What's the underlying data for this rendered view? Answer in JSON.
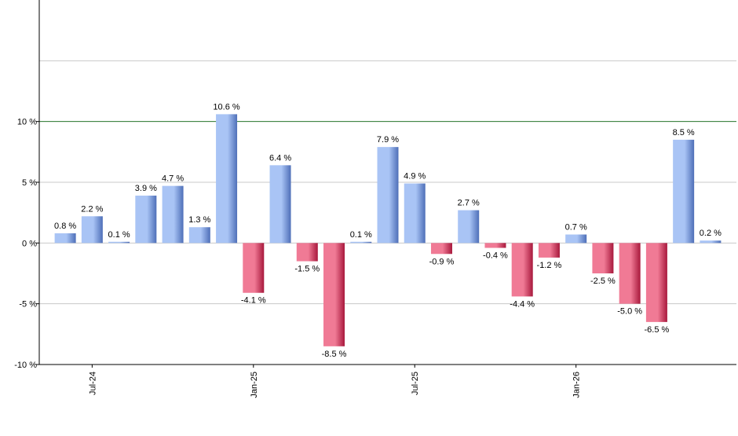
{
  "chart_data": {
    "type": "bar",
    "x": [
      "2024-06",
      "2024-07",
      "2024-08",
      "2024-09",
      "2024-10",
      "2024-11",
      "2024-12",
      "2025-01",
      "2025-02",
      "2025-03",
      "2025-04",
      "2025-05",
      "2025-06",
      "2025-07",
      "2025-08",
      "2025-09",
      "2025-10",
      "2025-11",
      "2025-12",
      "2026-01",
      "2026-02",
      "2026-03",
      "2026-04",
      "2026-05",
      "2026-06"
    ],
    "values": [
      0.8,
      2.2,
      0.1,
      3.9,
      4.7,
      1.3,
      10.6,
      -4.1,
      6.4,
      -1.5,
      -8.5,
      0.1,
      7.9,
      4.9,
      -0.9,
      2.7,
      -0.4,
      -4.4,
      -1.2,
      0.7,
      -2.5,
      -5.0,
      -6.5,
      8.5,
      0.2
    ],
    "labels": [
      "0.8 %",
      "2.2 %",
      "0.1 %",
      "3.9 %",
      "4.7 %",
      "1.3 %",
      "10.6 %",
      "-4.1 %",
      "6.4 %",
      "-1.5 %",
      "-8.5 %",
      "0.1 %",
      "7.9 %",
      "4.9 %",
      "-0.9 %",
      "2.7 %",
      "-0.4 %",
      "-4.4 %",
      "-1.2 %",
      "0.7 %",
      "-2.5 %",
      "-5.0 %",
      "-6.5 %",
      "8.5 %",
      "0.2 %"
    ],
    "ylim": [
      -10,
      20
    ],
    "yticks": [
      {
        "value": 10,
        "label": "10 %"
      },
      {
        "value": 5,
        "label": "5 %"
      },
      {
        "value": 0,
        "label": "0 %"
      },
      {
        "value": -5,
        "label": "-5 %"
      },
      {
        "value": -10,
        "label": "-10 %"
      }
    ],
    "xticks": [
      {
        "index": 1,
        "label": "Jul-24"
      },
      {
        "index": 7,
        "label": "Jan-25"
      },
      {
        "index": 13,
        "label": "Jul-25"
      },
      {
        "index": 19,
        "label": "Jan-26"
      }
    ],
    "reference_line": {
      "value": 10,
      "color": "#2e7d32"
    },
    "grid": true,
    "legend": "none",
    "colors": {
      "positive_light": "#a9c4f5",
      "positive_dark": "#4e6fb8",
      "negative_light": "#f07a95",
      "negative_dark": "#a8183c",
      "grid": "#c8c8c8",
      "axis": "#000000"
    }
  }
}
